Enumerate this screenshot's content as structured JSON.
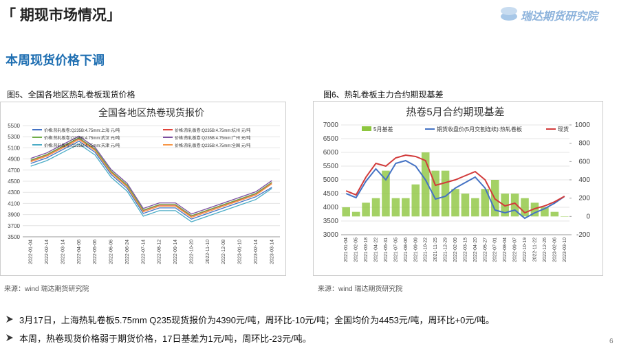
{
  "header": {
    "title": "「 期现市场情况」",
    "logo": "瑞达期货研究院"
  },
  "section_title": "本周现货价格下调",
  "figures": [
    {
      "caption": "图5、全国各地区热轧卷板现货价格",
      "source": "来源：wind   瑞达期货研究院"
    },
    {
      "caption": "图6、热轧卷板主力合约期现基差",
      "source": "来源：wind   瑞达期货研究院"
    }
  ],
  "bullets": [
    "3月17日，上海热轧卷板5.75mm Q235现货报价为4390元/吨，周环比-10元/吨；全国均价为4453元/吨，周环比+0元/吨。",
    "本周，热卷现货价格弱于期货价格，17日基差为1元/吨，周环比-23元/吨。"
  ],
  "page_number": "6",
  "chart_data": [
    {
      "type": "line",
      "title": "全国各地区热卷现货报价",
      "categories": [
        "2022-01-04",
        "2022-02-14",
        "2022-03-14",
        "2022-04-06",
        "2022-05-06",
        "2022-06-06",
        "2022-06-24",
        "2022-07-14",
        "2022-08-12",
        "2022-09-14",
        "2022-10-20",
        "2022-11-10",
        "2022-12-08",
        "2023-01-10",
        "2023-02-14",
        "2023-03-14"
      ],
      "ylim": [
        3500,
        5500
      ],
      "yticks": [
        3500,
        3700,
        3900,
        4100,
        4300,
        4500,
        4700,
        4900,
        5100,
        5300,
        5500
      ],
      "series": [
        {
          "name": "价格:热轧板卷:Q235B:4.75mm:上海 元/吨",
          "color": "#4472c4",
          "values": [
            4820,
            4920,
            5070,
            5220,
            5020,
            4620,
            4370,
            3920,
            4020,
            4020,
            3820,
            3920,
            4020,
            4120,
            4220,
            4390
          ]
        },
        {
          "name": "价格:热轧板卷:Q235B:4.75mm:杭州 元/吨",
          "color": "#e0443a",
          "values": [
            4870,
            4970,
            5120,
            5270,
            5070,
            4670,
            4420,
            3970,
            4070,
            4070,
            3870,
            3970,
            4070,
            4170,
            4270,
            4470
          ]
        },
        {
          "name": "价格:热轧板卷:Q235B:4.75mm:武汉 元/吨",
          "color": "#70ad47",
          "values": [
            4880,
            4980,
            5130,
            5280,
            5080,
            4680,
            4430,
            3980,
            4080,
            4080,
            3880,
            3980,
            4080,
            4180,
            4280,
            4480
          ]
        },
        {
          "name": "价格:热轧板卷:Q235B:4.75mm:广州 元/吨",
          "color": "#7b4fa0",
          "values": [
            4910,
            5010,
            5160,
            5310,
            5110,
            4710,
            4460,
            4010,
            4110,
            4110,
            3910,
            4010,
            4110,
            4210,
            4310,
            4510
          ]
        },
        {
          "name": "价格:热轧板卷:Q235B:4.75mm:天津 元/吨",
          "color": "#4bacc6",
          "values": [
            4770,
            4870,
            5020,
            5170,
            4970,
            4570,
            4320,
            3870,
            3970,
            3970,
            3770,
            3870,
            3970,
            4070,
            4170,
            4370
          ]
        },
        {
          "name": "价格:热轧板卷:Q235B:4.75mm:全国 元/吨",
          "color": "#f79646",
          "values": [
            4850,
            4950,
            5100,
            5250,
            5050,
            4650,
            4400,
            3950,
            4050,
            4050,
            3850,
            3950,
            4050,
            4150,
            4250,
            4453
          ]
        }
      ]
    },
    {
      "type": "combo",
      "title": "热卷5月合约期现基差",
      "categories": [
        "2021-01-04",
        "2021-02-05",
        "2021-03-18",
        "2021-04-22",
        "2021-05-31",
        "2021-07-05",
        "2021-08-06",
        "2021-09-09",
        "2021-10-22",
        "2021-11-25",
        "2021-12-29",
        "2022-02-09",
        "2022-03-15",
        "2022-04-20",
        "2022-05-27",
        "2022-07-01",
        "2022-08-04",
        "2022-09-07",
        "2022-10-19",
        "2022-11-22",
        "2022-12-26",
        "2023-02-06",
        "2023-03-10"
      ],
      "ylim": [
        3000,
        7000
      ],
      "yticks": [
        3000,
        3500,
        4000,
        4500,
        5000,
        5500,
        6000,
        6500,
        7000
      ],
      "y2lim": [
        -200,
        1000
      ],
      "y2ticks": [
        -200,
        0,
        200,
        400,
        600,
        800,
        1000
      ],
      "series": [
        {
          "name": "5月基差",
          "type": "bar",
          "axis": "y2",
          "color": "#8dc63f",
          "values": [
            100,
            50,
            150,
            200,
            500,
            200,
            200,
            350,
            700,
            500,
            500,
            300,
            250,
            200,
            300,
            400,
            250,
            250,
            200,
            150,
            100,
            50,
            0
          ]
        },
        {
          "name": "期货收盘价(5月交割连续):热轧卷板",
          "color": "#4472c4",
          "values": [
            4500,
            4350,
            4950,
            5400,
            5000,
            5600,
            5700,
            5500,
            5000,
            4300,
            4400,
            4700,
            4900,
            5100,
            4700,
            3900,
            3800,
            3900,
            3600,
            3800,
            3950,
            4150,
            4400
          ]
        },
        {
          "name": "现货",
          "color": "#d23b3b",
          "values": [
            4600,
            4450,
            5100,
            5600,
            5500,
            5800,
            5900,
            5850,
            5700,
            4800,
            4900,
            5000,
            5150,
            5300,
            5000,
            4300,
            4050,
            4150,
            3800,
            3950,
            4050,
            4200,
            4400
          ]
        }
      ]
    }
  ]
}
